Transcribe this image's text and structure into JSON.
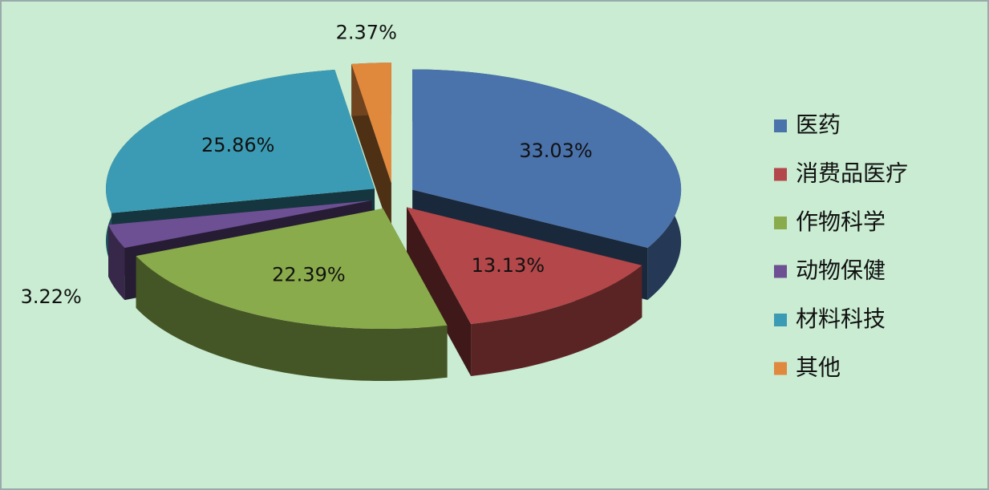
{
  "chart_data": {
    "type": "pie3d",
    "categories": [
      "医药",
      "消费品医疗",
      "作物科学",
      "动物保健",
      "材料科技",
      "其他"
    ],
    "values": [
      33.03,
      13.13,
      22.39,
      3.22,
      25.86,
      2.37
    ],
    "value_labels": [
      "33.03%",
      "13.13%",
      "22.39%",
      "3.22%",
      "25.86%",
      "2.37%"
    ],
    "colors": [
      "#4a72ab",
      "#b3474a",
      "#8aab4c",
      "#6d4f93",
      "#3c9bb4",
      "#e0883c"
    ],
    "legend": "right"
  }
}
